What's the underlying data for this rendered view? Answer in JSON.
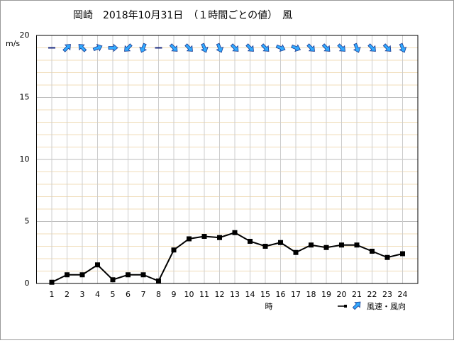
{
  "chart_data": {
    "type": "line",
    "title": "岡崎　2018年10月31日　（１時間ごとの値）　風",
    "y_unit": "m/s",
    "x_label": "時",
    "legend_label": "風速・風向",
    "x": [
      1,
      2,
      3,
      4,
      5,
      6,
      7,
      8,
      9,
      10,
      11,
      12,
      13,
      14,
      15,
      16,
      17,
      18,
      19,
      20,
      21,
      22,
      23,
      24
    ],
    "values": [
      0.1,
      0.7,
      0.7,
      1.5,
      0.3,
      0.7,
      0.7,
      0.2,
      2.7,
      3.6,
      3.8,
      3.7,
      4.1,
      3.4,
      3.0,
      3.3,
      2.5,
      3.1,
      2.9,
      3.1,
      3.1,
      2.6,
      2.1,
      2.4
    ],
    "direction": [
      null,
      45,
      315,
      67.5,
      90,
      225,
      202.5,
      null,
      135,
      135,
      157.5,
      157.5,
      135,
      135,
      135,
      112.5,
      112.5,
      135,
      135,
      135,
      157.5,
      135,
      135,
      157.5
    ],
    "arrow_level": 19,
    "color": "#000000",
    "arrow_color": "#33aaff",
    "xlim": [
      0,
      25
    ],
    "xticks": [
      1,
      2,
      3,
      4,
      5,
      6,
      7,
      8,
      9,
      10,
      11,
      12,
      13,
      14,
      15,
      16,
      17,
      18,
      19,
      20,
      21,
      22,
      23,
      24
    ],
    "ylim": [
      0,
      20
    ],
    "yticks": [
      0,
      5,
      10,
      15,
      20
    ],
    "y_minor_ticks": [
      1,
      2,
      3,
      4,
      6,
      7,
      8,
      9,
      11,
      12,
      13,
      14,
      16,
      17,
      18,
      19
    ],
    "grid": true
  }
}
